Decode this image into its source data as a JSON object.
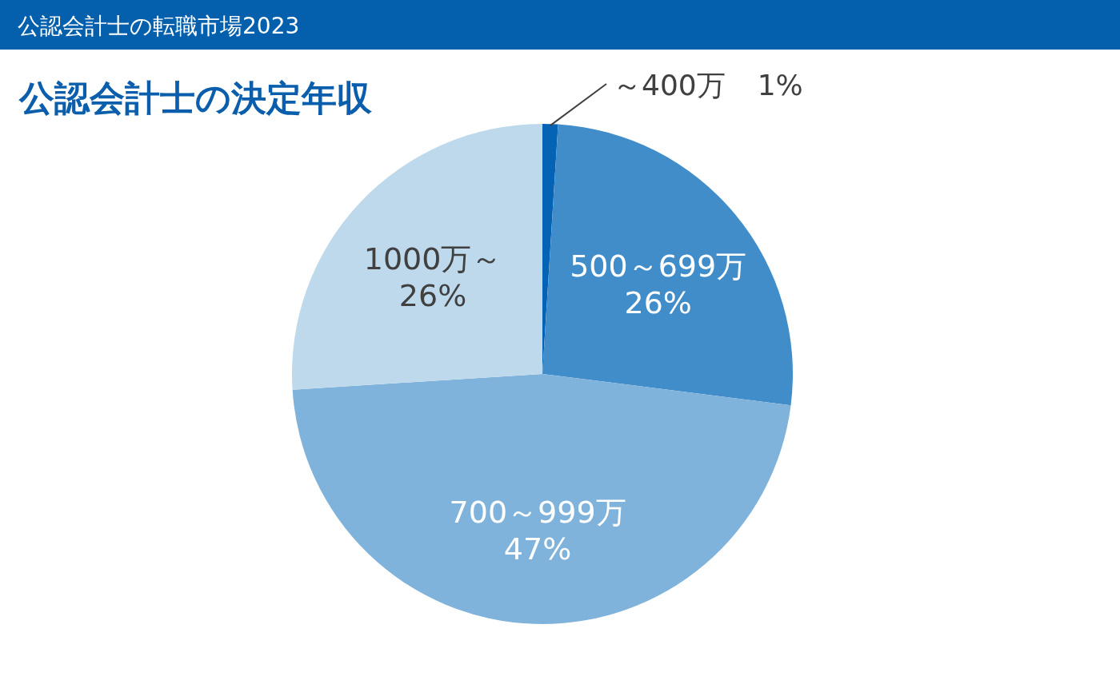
{
  "chart_data": {
    "type": "pie",
    "title": "公認会計士の転職市場2023",
    "subtitle": "公認会計士の決定年収",
    "categories": [
      "～400万",
      "500～699万",
      "700～999万",
      "1000万～"
    ],
    "values": [
      1,
      26,
      47,
      26
    ],
    "value_labels": [
      "1%",
      "26%",
      "47%",
      "26%"
    ],
    "colors": [
      "#0563b5",
      "#418dca",
      "#80b3db",
      "#bed9ec"
    ]
  }
}
